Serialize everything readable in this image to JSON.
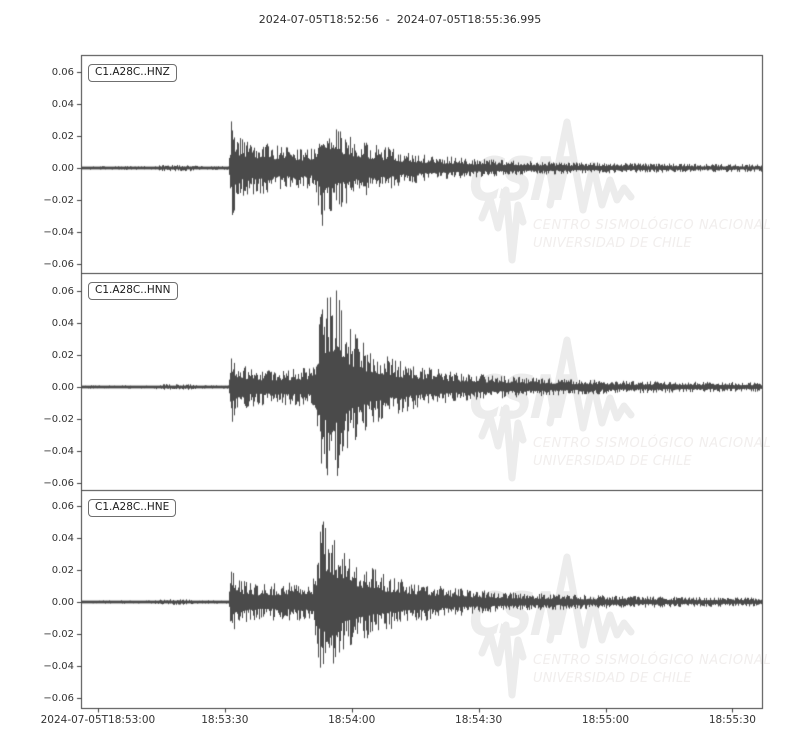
{
  "figure": {
    "title": "2024-07-05T18:52:56  -  2024-07-05T18:55:36.995",
    "background": "#ffffff"
  },
  "watermark": {
    "acronym": "CSN",
    "line1": "CENTRO SISMOLÓGICO NACIONAL",
    "line2": "UNIVERSIDAD DE CHILE",
    "logo_color": "#ececec",
    "text_color": "#f1eeed"
  },
  "chart_data": {
    "type": "line",
    "subtype": "seismogram-waveform",
    "title": "2024-07-05T18:52:56  -  2024-07-05T18:55:36.995",
    "xlabel": "",
    "ylabel": "",
    "grid": false,
    "x_start": "2024-07-05T18:52:56",
    "x_end": "2024-07-05T18:55:36.995",
    "duration_seconds": 160.995,
    "xlim_seconds": [
      0,
      160.995
    ],
    "ylim": [
      -0.0655,
      0.0705
    ],
    "x_ticks": [
      {
        "label": "2024-07-05T18:53:00",
        "seconds": 4
      },
      {
        "label": "18:53:30",
        "seconds": 34
      },
      {
        "label": "18:54:00",
        "seconds": 64
      },
      {
        "label": "18:54:30",
        "seconds": 94
      },
      {
        "label": "18:55:00",
        "seconds": 124
      },
      {
        "label": "18:55:30",
        "seconds": 154
      }
    ],
    "y_ticks": [
      0.06,
      0.04,
      0.02,
      0.0,
      -0.02,
      -0.04,
      -0.06
    ],
    "y_tick_labels": [
      "0.06",
      "0.04",
      "0.02",
      "0.00",
      "−0.02",
      "−0.04",
      "−0.06"
    ],
    "trace_color": "#4a4a4a",
    "axis_color": "#3d3d3d",
    "p_onset_fraction": 0.219,
    "s_onset_fraction": 0.349,
    "panels": [
      {
        "label": "C1.A28C..HNZ",
        "channel": "HNZ",
        "peak_amplitude": 0.042,
        "min_amplitude": -0.04,
        "seed": 1337,
        "envelope": [
          [
            0.0,
            0.0012
          ],
          [
            0.105,
            0.0012
          ],
          [
            0.115,
            0.002
          ],
          [
            0.162,
            0.002
          ],
          [
            0.172,
            0.0012
          ],
          [
            0.216,
            0.0012
          ],
          [
            0.22,
            0.032
          ],
          [
            0.228,
            0.024
          ],
          [
            0.238,
            0.0185
          ],
          [
            0.27,
            0.016
          ],
          [
            0.31,
            0.013
          ],
          [
            0.344,
            0.013
          ],
          [
            0.352,
            0.04
          ],
          [
            0.37,
            0.028
          ],
          [
            0.395,
            0.021
          ],
          [
            0.43,
            0.015
          ],
          [
            0.47,
            0.011
          ],
          [
            0.52,
            0.008
          ],
          [
            0.58,
            0.0058
          ],
          [
            0.65,
            0.0045
          ],
          [
            0.73,
            0.0036
          ],
          [
            0.82,
            0.003
          ],
          [
            0.91,
            0.0026
          ],
          [
            1.0,
            0.0024
          ]
        ]
      },
      {
        "label": "C1.A28C..HNN",
        "channel": "HNN",
        "peak_amplitude": 0.062,
        "min_amplitude": -0.058,
        "seed": 4242,
        "envelope": [
          [
            0.0,
            0.0011
          ],
          [
            0.105,
            0.0011
          ],
          [
            0.115,
            0.0018
          ],
          [
            0.162,
            0.0018
          ],
          [
            0.172,
            0.0011
          ],
          [
            0.216,
            0.0011
          ],
          [
            0.22,
            0.023
          ],
          [
            0.232,
            0.015
          ],
          [
            0.25,
            0.012
          ],
          [
            0.285,
            0.011
          ],
          [
            0.32,
            0.012
          ],
          [
            0.344,
            0.013
          ],
          [
            0.352,
            0.052
          ],
          [
            0.376,
            0.062
          ],
          [
            0.392,
            0.038
          ],
          [
            0.42,
            0.026
          ],
          [
            0.455,
            0.018
          ],
          [
            0.5,
            0.013
          ],
          [
            0.55,
            0.0095
          ],
          [
            0.62,
            0.007
          ],
          [
            0.7,
            0.0052
          ],
          [
            0.8,
            0.004
          ],
          [
            0.9,
            0.0033
          ],
          [
            1.0,
            0.003
          ]
        ]
      },
      {
        "label": "C1.A28C..HNE",
        "channel": "HNE",
        "peak_amplitude": 0.055,
        "min_amplitude": -0.053,
        "seed": 9001,
        "envelope": [
          [
            0.0,
            0.0011
          ],
          [
            0.105,
            0.0011
          ],
          [
            0.115,
            0.0018
          ],
          [
            0.162,
            0.0018
          ],
          [
            0.172,
            0.0011
          ],
          [
            0.216,
            0.0011
          ],
          [
            0.22,
            0.021
          ],
          [
            0.235,
            0.014
          ],
          [
            0.26,
            0.0115
          ],
          [
            0.3,
            0.012
          ],
          [
            0.34,
            0.0135
          ],
          [
            0.352,
            0.048
          ],
          [
            0.362,
            0.055
          ],
          [
            0.385,
            0.033
          ],
          [
            0.415,
            0.024
          ],
          [
            0.45,
            0.017
          ],
          [
            0.495,
            0.0125
          ],
          [
            0.545,
            0.009
          ],
          [
            0.615,
            0.0065
          ],
          [
            0.7,
            0.005
          ],
          [
            0.8,
            0.0038
          ],
          [
            0.9,
            0.0031
          ],
          [
            1.0,
            0.0028
          ]
        ]
      }
    ]
  }
}
